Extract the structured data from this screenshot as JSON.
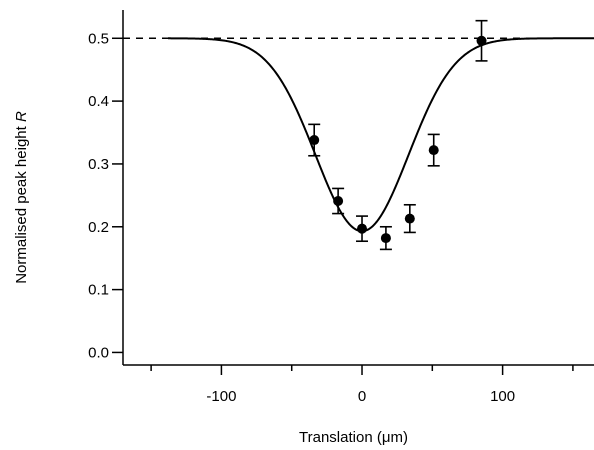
{
  "chart_data": {
    "type": "scatter",
    "title": "",
    "xlabel": "Translation (μm)",
    "ylabel_main": "Normalised peak height ",
    "ylabel_symbol": "R",
    "xlim": [
      -170,
      165
    ],
    "ylim": [
      -0.02,
      0.545
    ],
    "x_ticks": [
      {
        "value": -100,
        "label": "-100"
      },
      {
        "value": 0,
        "label": "0"
      },
      {
        "value": 100,
        "label": "100"
      }
    ],
    "x_minor_ticks": [
      -150,
      -50,
      50,
      150
    ],
    "y_ticks": [
      {
        "value": 0.0,
        "label": "0.0"
      },
      {
        "value": 0.1,
        "label": "0.1"
      },
      {
        "value": 0.2,
        "label": "0.2"
      },
      {
        "value": 0.3,
        "label": "0.3"
      },
      {
        "value": 0.4,
        "label": "0.4"
      },
      {
        "value": 0.5,
        "label": "0.5"
      }
    ],
    "grid": false,
    "reference_line": {
      "y": 0.5,
      "style": "dashed"
    },
    "series": [
      {
        "kind": "points_with_error_bars",
        "points": [
          {
            "x": -34,
            "y": 0.338,
            "err": 0.025
          },
          {
            "x": -17,
            "y": 0.241,
            "err": 0.02
          },
          {
            "x": 0,
            "y": 0.197,
            "err": 0.02
          },
          {
            "x": 17,
            "y": 0.182,
            "err": 0.018
          },
          {
            "x": 34,
            "y": 0.213,
            "err": 0.022
          },
          {
            "x": 51,
            "y": 0.322,
            "err": 0.025
          },
          {
            "x": 85,
            "y": 0.496,
            "err": 0.032
          }
        ]
      },
      {
        "kind": "fit_curve",
        "model": "baseline - depth * exp(-x^2 / (2 sigma^2))",
        "baseline": 0.5,
        "depth": 0.307,
        "center": 0,
        "sigma": 33
      }
    ]
  }
}
